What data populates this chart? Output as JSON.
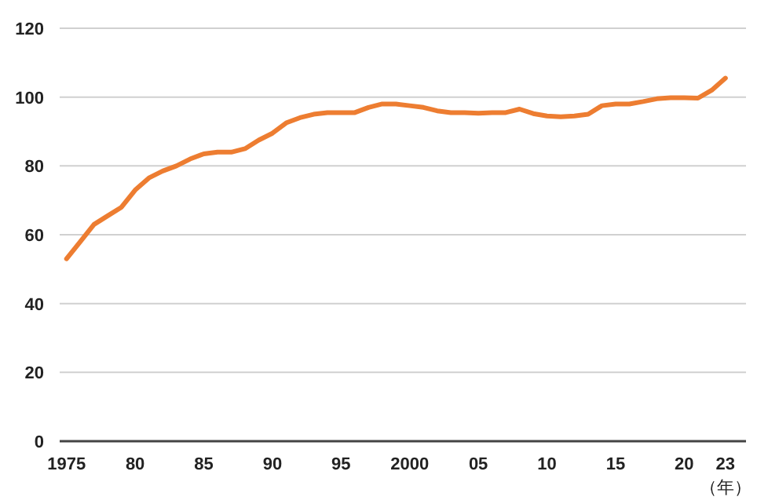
{
  "chart_data": {
    "type": "line",
    "xlabel": "（年）",
    "x": [
      1975,
      1976,
      1977,
      1978,
      1979,
      1980,
      1981,
      1982,
      1983,
      1984,
      1985,
      1986,
      1987,
      1988,
      1989,
      1990,
      1991,
      1992,
      1993,
      1994,
      1995,
      1996,
      1997,
      1998,
      1999,
      2000,
      2001,
      2002,
      2003,
      2004,
      2005,
      2006,
      2007,
      2008,
      2009,
      2010,
      2011,
      2012,
      2013,
      2014,
      2015,
      2016,
      2017,
      2018,
      2019,
      2020,
      2021,
      2022,
      2023
    ],
    "series": [
      {
        "color": "#ed7d31",
        "values": [
          53,
          58,
          63,
          65.5,
          68,
          73,
          76.5,
          78.5,
          80,
          82,
          83.5,
          84,
          84,
          85,
          87.5,
          89.5,
          92.5,
          94,
          95,
          95.5,
          95.5,
          95.5,
          97,
          98,
          98,
          97.5,
          97,
          96,
          95.5,
          95.5,
          95.3,
          95.5,
          95.5,
          96.5,
          95.2,
          94.5,
          94.3,
          94.5,
          95,
          97.5,
          98,
          98,
          98.7,
          99.5,
          99.8,
          99.8,
          99.7,
          102,
          105.5
        ]
      }
    ],
    "xlim": [
      1974.5,
      2024.5
    ],
    "ylim": [
      0,
      120
    ],
    "xticks": [
      {
        "value": 1975,
        "label": "1975"
      },
      {
        "value": 1980,
        "label": "80"
      },
      {
        "value": 1985,
        "label": "85"
      },
      {
        "value": 1990,
        "label": "90"
      },
      {
        "value": 1995,
        "label": "95"
      },
      {
        "value": 2000,
        "label": "2000"
      },
      {
        "value": 2005,
        "label": "05"
      },
      {
        "value": 2010,
        "label": "10"
      },
      {
        "value": 2015,
        "label": "15"
      },
      {
        "value": 2020,
        "label": "20"
      },
      {
        "value": 2023,
        "label": "23"
      }
    ],
    "yticks": [
      0,
      20,
      40,
      60,
      80,
      100,
      120
    ],
    "grid": "y",
    "marker": "none",
    "line_style": "solid"
  }
}
